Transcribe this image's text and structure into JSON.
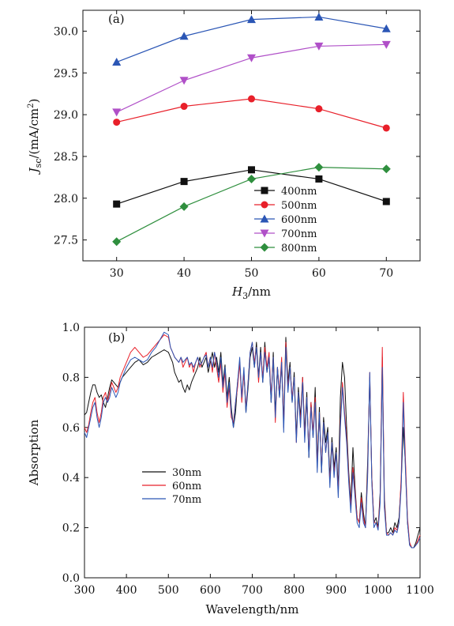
{
  "chart_data": [
    {
      "panel_label": "(a)",
      "type": "line",
      "xlabel": "H3/nm",
      "ylabel": "Jsc/(mA/cm2)",
      "xlabel_main": "H",
      "xlabel_sub": "3",
      "xlabel_unit": "/nm",
      "ylabel_main": "J",
      "ylabel_sub": "sc",
      "ylabel_unit": "/(mA/cm",
      "ylabel_sup": "2",
      "ylabel_close": ")",
      "x": [
        30,
        40,
        50,
        60,
        70
      ],
      "xlim": [
        25,
        75
      ],
      "ylim": [
        27.25,
        30.25
      ],
      "xticks": [
        "30",
        "40",
        "50",
        "60",
        "70"
      ],
      "yticks": [
        "27.5",
        "28.0",
        "28.5",
        "29.0",
        "29.5",
        "30.0"
      ],
      "legend_position": "lower-right",
      "series": [
        {
          "name": "400nm",
          "color": "#111111",
          "marker": "square",
          "values": [
            27.93,
            28.2,
            28.34,
            28.23,
            27.96
          ]
        },
        {
          "name": "500nm",
          "color": "#e8202a",
          "marker": "circle",
          "values": [
            28.91,
            29.1,
            29.19,
            29.07,
            28.84
          ]
        },
        {
          "name": "600nm",
          "color": "#2b56b5",
          "marker": "triangle-up",
          "values": [
            29.63,
            29.94,
            30.14,
            30.17,
            30.03
          ]
        },
        {
          "name": "700nm",
          "color": "#b050c8",
          "marker": "triangle-down",
          "values": [
            29.03,
            29.41,
            29.68,
            29.82,
            29.84
          ]
        },
        {
          "name": "800nm",
          "color": "#2f8f3e",
          "marker": "diamond",
          "values": [
            27.48,
            27.9,
            28.23,
            28.37,
            28.35
          ]
        }
      ]
    },
    {
      "panel_label": "(b)",
      "type": "line",
      "xlabel": "Wavelength/nm",
      "ylabel": "Absorption",
      "xlim": [
        300,
        1100
      ],
      "ylim": [
        0.0,
        1.0
      ],
      "xticks": [
        "300",
        "400",
        "500",
        "600",
        "700",
        "800",
        "900",
        "1000",
        "1100"
      ],
      "yticks": [
        "0.0",
        "0.2",
        "0.4",
        "0.6",
        "0.8",
        "1.0"
      ],
      "legend_position": "lower-left",
      "series": [
        {
          "name": "30nm",
          "color": "#111111",
          "x": [
            300,
            305,
            310,
            315,
            320,
            325,
            330,
            335,
            340,
            345,
            350,
            355,
            360,
            365,
            370,
            375,
            380,
            385,
            390,
            395,
            400,
            410,
            420,
            430,
            440,
            450,
            460,
            470,
            480,
            490,
            500,
            505,
            510,
            515,
            520,
            525,
            530,
            535,
            540,
            545,
            550,
            555,
            560,
            565,
            570,
            575,
            580,
            585,
            590,
            595,
            600,
            605,
            610,
            615,
            620,
            625,
            630,
            635,
            640,
            645,
            650,
            655,
            660,
            665,
            670,
            675,
            680,
            685,
            690,
            695,
            700,
            705,
            710,
            715,
            720,
            725,
            730,
            735,
            740,
            745,
            750,
            755,
            760,
            765,
            770,
            775,
            780,
            785,
            790,
            795,
            800,
            805,
            810,
            815,
            820,
            825,
            830,
            835,
            840,
            845,
            850,
            855,
            860,
            865,
            870,
            875,
            880,
            885,
            890,
            895,
            900,
            905,
            910,
            915,
            920,
            925,
            930,
            935,
            940,
            945,
            950,
            955,
            960,
            965,
            970,
            975,
            980,
            985,
            990,
            995,
            1000,
            1005,
            1010,
            1015,
            1020,
            1025,
            1030,
            1035,
            1040,
            1045,
            1050,
            1055,
            1060,
            1065,
            1070,
            1075,
            1080,
            1085,
            1090,
            1095,
            1100
          ],
          "values": [
            0.65,
            0.66,
            0.7,
            0.74,
            0.77,
            0.77,
            0.74,
            0.72,
            0.73,
            0.7,
            0.68,
            0.72,
            0.76,
            0.79,
            0.78,
            0.77,
            0.76,
            0.78,
            0.8,
            0.81,
            0.82,
            0.84,
            0.86,
            0.87,
            0.85,
            0.86,
            0.88,
            0.89,
            0.9,
            0.91,
            0.9,
            0.88,
            0.86,
            0.82,
            0.8,
            0.78,
            0.79,
            0.76,
            0.74,
            0.77,
            0.75,
            0.78,
            0.8,
            0.82,
            0.84,
            0.88,
            0.84,
            0.86,
            0.88,
            0.82,
            0.86,
            0.9,
            0.84,
            0.88,
            0.82,
            0.9,
            0.78,
            0.85,
            0.72,
            0.8,
            0.68,
            0.6,
            0.66,
            0.78,
            0.86,
            0.72,
            0.82,
            0.66,
            0.76,
            0.88,
            0.92,
            0.84,
            0.94,
            0.8,
            0.92,
            0.78,
            0.94,
            0.82,
            0.88,
            0.7,
            0.9,
            0.66,
            0.84,
            0.72,
            0.86,
            0.62,
            0.96,
            0.78,
            0.86,
            0.7,
            0.82,
            0.56,
            0.76,
            0.64,
            0.8,
            0.58,
            0.74,
            0.48,
            0.7,
            0.56,
            0.76,
            0.46,
            0.68,
            0.42,
            0.64,
            0.54,
            0.6,
            0.4,
            0.56,
            0.44,
            0.52,
            0.36,
            0.72,
            0.86,
            0.8,
            0.6,
            0.42,
            0.3,
            0.52,
            0.36,
            0.24,
            0.22,
            0.34,
            0.26,
            0.2,
            0.46,
            0.8,
            0.4,
            0.22,
            0.24,
            0.2,
            0.34,
            0.88,
            0.32,
            0.18,
            0.18,
            0.2,
            0.18,
            0.22,
            0.2,
            0.24,
            0.38,
            0.6,
            0.46,
            0.22,
            0.14,
            0.12,
            0.12,
            0.14,
            0.17,
            0.2
          ]
        },
        {
          "name": "60nm",
          "color": "#e8202a",
          "x": [
            300,
            305,
            310,
            315,
            320,
            325,
            330,
            335,
            340,
            345,
            350,
            355,
            360,
            365,
            370,
            375,
            380,
            385,
            390,
            395,
            400,
            410,
            420,
            430,
            440,
            450,
            460,
            470,
            480,
            490,
            500,
            505,
            510,
            515,
            520,
            525,
            530,
            535,
            540,
            545,
            550,
            555,
            560,
            565,
            570,
            575,
            580,
            585,
            590,
            595,
            600,
            605,
            610,
            615,
            620,
            625,
            630,
            635,
            640,
            645,
            650,
            655,
            660,
            665,
            670,
            675,
            680,
            685,
            690,
            695,
            700,
            705,
            710,
            715,
            720,
            725,
            730,
            735,
            740,
            745,
            750,
            755,
            760,
            765,
            770,
            775,
            780,
            785,
            790,
            795,
            800,
            805,
            810,
            815,
            820,
            825,
            830,
            835,
            840,
            845,
            850,
            855,
            860,
            865,
            870,
            875,
            880,
            885,
            890,
            895,
            900,
            905,
            910,
            915,
            920,
            925,
            930,
            935,
            940,
            945,
            950,
            955,
            960,
            965,
            970,
            975,
            980,
            985,
            990,
            995,
            1000,
            1005,
            1010,
            1015,
            1020,
            1025,
            1030,
            1035,
            1040,
            1045,
            1050,
            1055,
            1060,
            1065,
            1070,
            1075,
            1080,
            1085,
            1090,
            1095,
            1100
          ],
          "values": [
            0.6,
            0.58,
            0.61,
            0.66,
            0.7,
            0.72,
            0.66,
            0.62,
            0.66,
            0.72,
            0.74,
            0.7,
            0.74,
            0.78,
            0.76,
            0.74,
            0.76,
            0.8,
            0.82,
            0.84,
            0.86,
            0.9,
            0.92,
            0.9,
            0.88,
            0.89,
            0.91,
            0.93,
            0.95,
            0.97,
            0.96,
            0.92,
            0.9,
            0.88,
            0.87,
            0.86,
            0.88,
            0.84,
            0.86,
            0.88,
            0.84,
            0.86,
            0.82,
            0.86,
            0.88,
            0.84,
            0.86,
            0.88,
            0.9,
            0.84,
            0.88,
            0.82,
            0.9,
            0.84,
            0.78,
            0.86,
            0.74,
            0.82,
            0.68,
            0.76,
            0.64,
            0.62,
            0.7,
            0.76,
            0.86,
            0.7,
            0.82,
            0.68,
            0.78,
            0.9,
            0.94,
            0.86,
            0.92,
            0.78,
            0.9,
            0.8,
            0.92,
            0.84,
            0.9,
            0.72,
            0.88,
            0.62,
            0.84,
            0.74,
            0.88,
            0.6,
            0.94,
            0.76,
            0.84,
            0.72,
            0.8,
            0.54,
            0.74,
            0.62,
            0.8,
            0.56,
            0.72,
            0.5,
            0.7,
            0.58,
            0.72,
            0.44,
            0.66,
            0.44,
            0.62,
            0.5,
            0.58,
            0.38,
            0.54,
            0.42,
            0.5,
            0.34,
            0.62,
            0.78,
            0.66,
            0.56,
            0.4,
            0.28,
            0.44,
            0.34,
            0.24,
            0.22,
            0.32,
            0.24,
            0.2,
            0.42,
            0.82,
            0.4,
            0.22,
            0.22,
            0.2,
            0.32,
            0.92,
            0.3,
            0.18,
            0.17,
            0.18,
            0.17,
            0.2,
            0.19,
            0.22,
            0.4,
            0.74,
            0.48,
            0.24,
            0.14,
            0.12,
            0.12,
            0.13,
            0.15,
            0.17
          ]
        },
        {
          "name": "70nm",
          "color": "#2b56b5",
          "x": [
            300,
            305,
            310,
            315,
            320,
            325,
            330,
            335,
            340,
            345,
            350,
            355,
            360,
            365,
            370,
            375,
            380,
            385,
            390,
            395,
            400,
            410,
            420,
            430,
            440,
            450,
            460,
            470,
            480,
            490,
            500,
            505,
            510,
            515,
            520,
            525,
            530,
            535,
            540,
            545,
            550,
            555,
            560,
            565,
            570,
            575,
            580,
            585,
            590,
            595,
            600,
            605,
            610,
            615,
            620,
            625,
            630,
            635,
            640,
            645,
            650,
            655,
            660,
            665,
            670,
            675,
            680,
            685,
            690,
            695,
            700,
            705,
            710,
            715,
            720,
            725,
            730,
            735,
            740,
            745,
            750,
            755,
            760,
            765,
            770,
            775,
            780,
            785,
            790,
            795,
            800,
            805,
            810,
            815,
            820,
            825,
            830,
            835,
            840,
            845,
            850,
            855,
            860,
            865,
            870,
            875,
            880,
            885,
            890,
            895,
            900,
            905,
            910,
            915,
            920,
            925,
            930,
            935,
            940,
            945,
            950,
            955,
            960,
            965,
            970,
            975,
            980,
            985,
            990,
            995,
            1000,
            1005,
            1010,
            1015,
            1020,
            1025,
            1030,
            1035,
            1040,
            1045,
            1050,
            1055,
            1060,
            1065,
            1070,
            1075,
            1080,
            1085,
            1090,
            1095,
            1100
          ],
          "values": [
            0.58,
            0.56,
            0.6,
            0.64,
            0.68,
            0.7,
            0.64,
            0.6,
            0.64,
            0.7,
            0.72,
            0.7,
            0.72,
            0.76,
            0.74,
            0.72,
            0.74,
            0.78,
            0.8,
            0.82,
            0.84,
            0.87,
            0.88,
            0.87,
            0.86,
            0.87,
            0.9,
            0.92,
            0.95,
            0.98,
            0.97,
            0.92,
            0.9,
            0.88,
            0.87,
            0.86,
            0.88,
            0.86,
            0.87,
            0.88,
            0.85,
            0.86,
            0.84,
            0.86,
            0.88,
            0.85,
            0.86,
            0.88,
            0.89,
            0.84,
            0.88,
            0.84,
            0.9,
            0.86,
            0.8,
            0.88,
            0.76,
            0.84,
            0.7,
            0.78,
            0.66,
            0.6,
            0.7,
            0.78,
            0.88,
            0.72,
            0.84,
            0.66,
            0.78,
            0.9,
            0.94,
            0.84,
            0.92,
            0.8,
            0.9,
            0.78,
            0.9,
            0.82,
            0.88,
            0.7,
            0.88,
            0.64,
            0.84,
            0.72,
            0.86,
            0.58,
            0.92,
            0.74,
            0.84,
            0.7,
            0.8,
            0.54,
            0.74,
            0.6,
            0.78,
            0.54,
            0.72,
            0.48,
            0.68,
            0.56,
            0.7,
            0.42,
            0.66,
            0.42,
            0.62,
            0.5,
            0.58,
            0.36,
            0.54,
            0.4,
            0.5,
            0.32,
            0.6,
            0.76,
            0.64,
            0.54,
            0.38,
            0.26,
            0.42,
            0.32,
            0.22,
            0.2,
            0.3,
            0.22,
            0.2,
            0.4,
            0.82,
            0.38,
            0.2,
            0.22,
            0.19,
            0.3,
            0.84,
            0.28,
            0.17,
            0.17,
            0.18,
            0.17,
            0.19,
            0.18,
            0.22,
            0.36,
            0.7,
            0.44,
            0.22,
            0.13,
            0.12,
            0.12,
            0.13,
            0.14,
            0.16
          ]
        }
      ]
    }
  ]
}
